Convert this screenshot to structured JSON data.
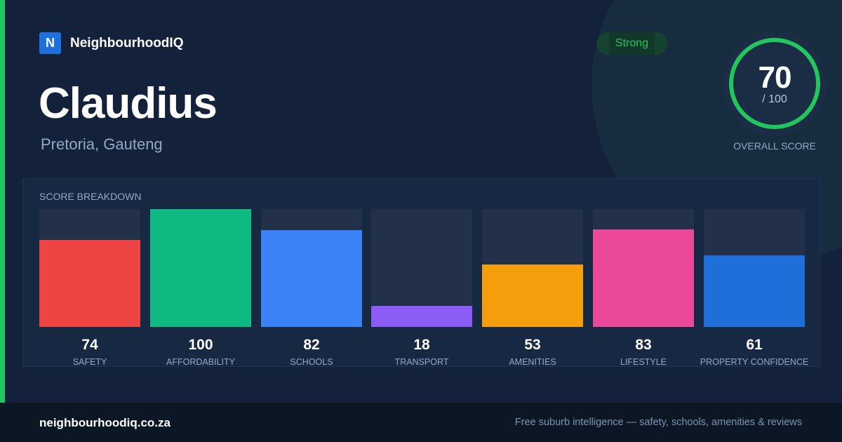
{
  "brand": {
    "logo_letter": "N",
    "name": "NeighbourhoodIQ"
  },
  "suburb": {
    "name": "Claudius",
    "location": "Pretoria, Gauteng"
  },
  "rating": {
    "label": "Strong"
  },
  "overall": {
    "score": "70",
    "out_of": "/ 100",
    "label": "OVERALL SCORE",
    "fraction": 0.7,
    "ring_color": "#22c55e"
  },
  "breakdown": {
    "title": "SCORE BREAKDOWN",
    "categories": [
      {
        "label": "SAFETY",
        "value": "74",
        "score": 74,
        "color": "#ef4444"
      },
      {
        "label": "AFFORDABILITY",
        "value": "100",
        "score": 100,
        "color": "#10b981"
      },
      {
        "label": "SCHOOLS",
        "value": "82",
        "score": 82,
        "color": "#3b82f6"
      },
      {
        "label": "TRANSPORT",
        "value": "18",
        "score": 18,
        "color": "#8b5cf6"
      },
      {
        "label": "AMENITIES",
        "value": "53",
        "score": 53,
        "color": "#f59e0b"
      },
      {
        "label": "LIFESTYLE",
        "value": "83",
        "score": 83,
        "color": "#ec4899"
      },
      {
        "label": "PROPERTY CONFIDENCE",
        "value": "61",
        "score": 61,
        "color": "#1e6fd9"
      }
    ]
  },
  "footer": {
    "domain": "neighbourhoodiq.co.za",
    "tagline": "Free suburb intelligence — safety, schools, amenities & reviews"
  }
}
